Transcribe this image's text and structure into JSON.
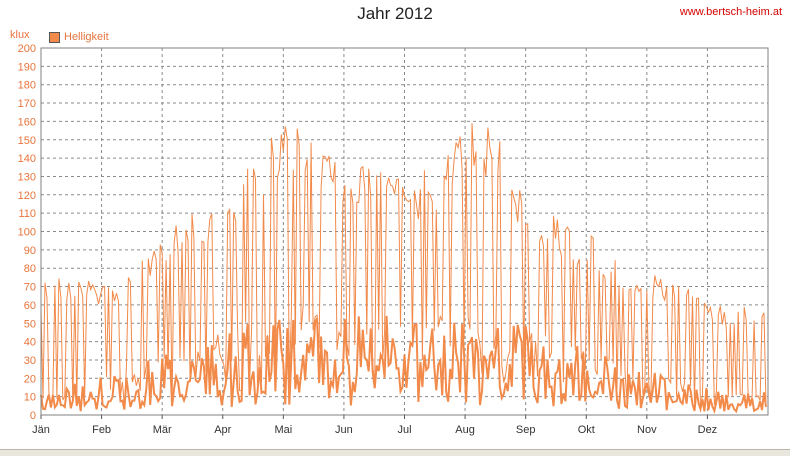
{
  "header": {
    "title": "Jahr 2012",
    "site": "www.bertsch-heim.at",
    "unit_label": "klux"
  },
  "chart_data": {
    "type": "line",
    "title": "Jahr 2012",
    "ylabel": "klux",
    "ylim": [
      0,
      200
    ],
    "yticks": [
      0,
      10,
      20,
      30,
      40,
      50,
      60,
      70,
      80,
      90,
      100,
      110,
      120,
      130,
      140,
      150,
      160,
      170,
      180,
      190,
      200
    ],
    "xlim": [
      0,
      12
    ],
    "months": [
      "Jän",
      "Feb",
      "Mär",
      "Apr",
      "Mai",
      "Jun",
      "Jul",
      "Aug",
      "Sep",
      "Okt",
      "Nov",
      "Dez"
    ],
    "grid": true,
    "legend": "top-left",
    "series": [
      {
        "name": "Helligkeit",
        "color": "#f28a4a",
        "envelope": [
          [
            0.0,
            10,
            70
          ],
          [
            0.25,
            12,
            75
          ],
          [
            0.5,
            15,
            72
          ],
          [
            0.75,
            18,
            74
          ],
          [
            1.0,
            20,
            70
          ],
          [
            1.25,
            22,
            72
          ],
          [
            1.5,
            25,
            82
          ],
          [
            1.75,
            28,
            90
          ],
          [
            2.0,
            30,
            100
          ],
          [
            2.25,
            32,
            104
          ],
          [
            2.5,
            35,
            108
          ],
          [
            2.75,
            38,
            112
          ],
          [
            3.0,
            42,
            115
          ],
          [
            3.25,
            45,
            125
          ],
          [
            3.5,
            48,
            140
          ],
          [
            3.75,
            52,
            148
          ],
          [
            4.0,
            55,
            160
          ],
          [
            4.25,
            55,
            158
          ],
          [
            4.5,
            53,
            150
          ],
          [
            4.75,
            52,
            145
          ],
          [
            5.0,
            50,
            138
          ],
          [
            5.25,
            50,
            135
          ],
          [
            5.5,
            50,
            132
          ],
          [
            5.75,
            50,
            128
          ],
          [
            6.0,
            48,
            125
          ],
          [
            6.25,
            48,
            130
          ],
          [
            6.5,
            49,
            135
          ],
          [
            6.75,
            50,
            148
          ],
          [
            7.0,
            50,
            155
          ],
          [
            7.25,
            50,
            160
          ],
          [
            7.5,
            48,
            152
          ],
          [
            7.75,
            46,
            140
          ],
          [
            8.0,
            44,
            110
          ],
          [
            8.25,
            42,
            112
          ],
          [
            8.5,
            40,
            108
          ],
          [
            8.75,
            38,
            100
          ],
          [
            9.0,
            35,
            98
          ],
          [
            9.25,
            30,
            92
          ],
          [
            9.5,
            28,
            86
          ],
          [
            9.75,
            25,
            80
          ],
          [
            10.0,
            22,
            78
          ],
          [
            10.25,
            20,
            74
          ],
          [
            10.5,
            18,
            70
          ],
          [
            10.75,
            16,
            68
          ],
          [
            11.0,
            15,
            65
          ],
          [
            11.25,
            12,
            58
          ],
          [
            11.5,
            10,
            55
          ],
          [
            11.75,
            12,
            62
          ],
          [
            12.0,
            12,
            60
          ]
        ]
      }
    ]
  }
}
